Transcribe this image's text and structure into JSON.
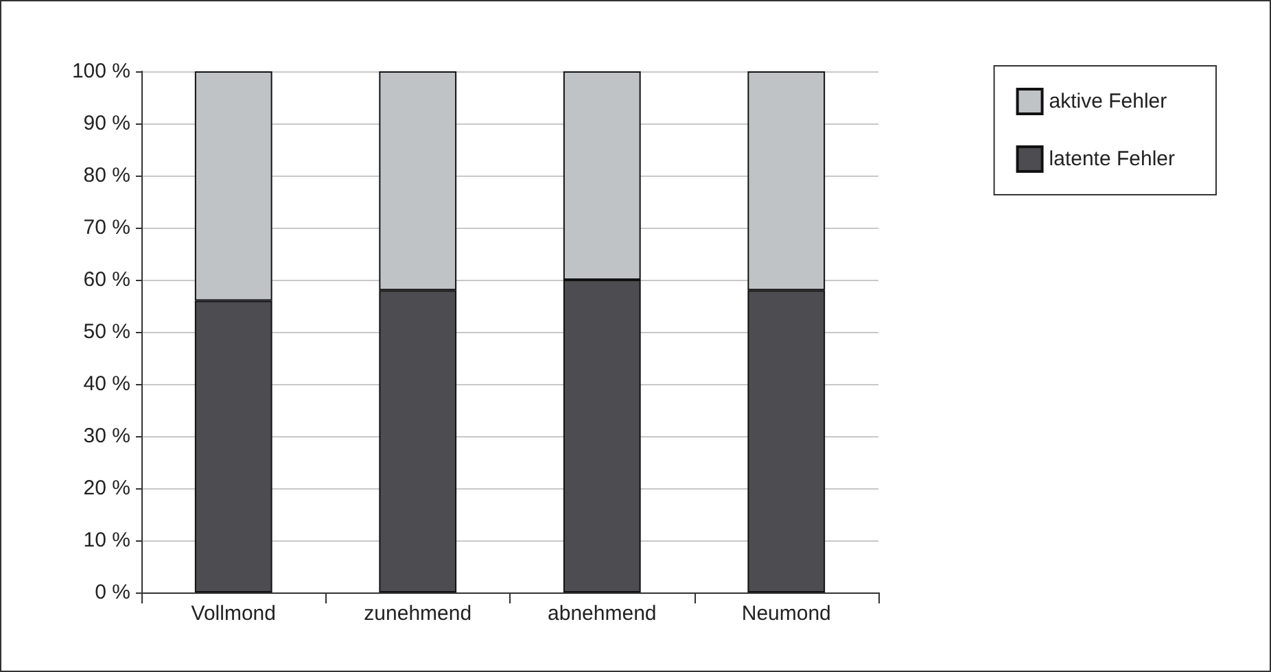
{
  "chart_data": {
    "type": "bar",
    "stacked": true,
    "categories": [
      "Vollmond",
      "zunehmend",
      "abnehmend",
      "Neumond"
    ],
    "series": [
      {
        "name": "latente Fehler",
        "color": "#4d4c51",
        "values": [
          56,
          58,
          60,
          58
        ]
      },
      {
        "name": "aktive Fehler",
        "color": "#c0c3c6",
        "values": [
          44,
          42,
          40,
          42
        ]
      }
    ],
    "ylim": [
      0,
      100
    ],
    "yticks": [
      {
        "value": 0,
        "label": "0 %"
      },
      {
        "value": 10,
        "label": "10 %"
      },
      {
        "value": 20,
        "label": "20 %"
      },
      {
        "value": 30,
        "label": "30 %"
      },
      {
        "value": 40,
        "label": "40 %"
      },
      {
        "value": 50,
        "label": "50 %"
      },
      {
        "value": 60,
        "label": "60 %"
      },
      {
        "value": 70,
        "label": "70 %"
      },
      {
        "value": 80,
        "label": "80 %"
      },
      {
        "value": 90,
        "label": "90 %"
      },
      {
        "value": 100,
        "label": "100 %"
      }
    ],
    "grid": "y",
    "legend": "top right"
  }
}
